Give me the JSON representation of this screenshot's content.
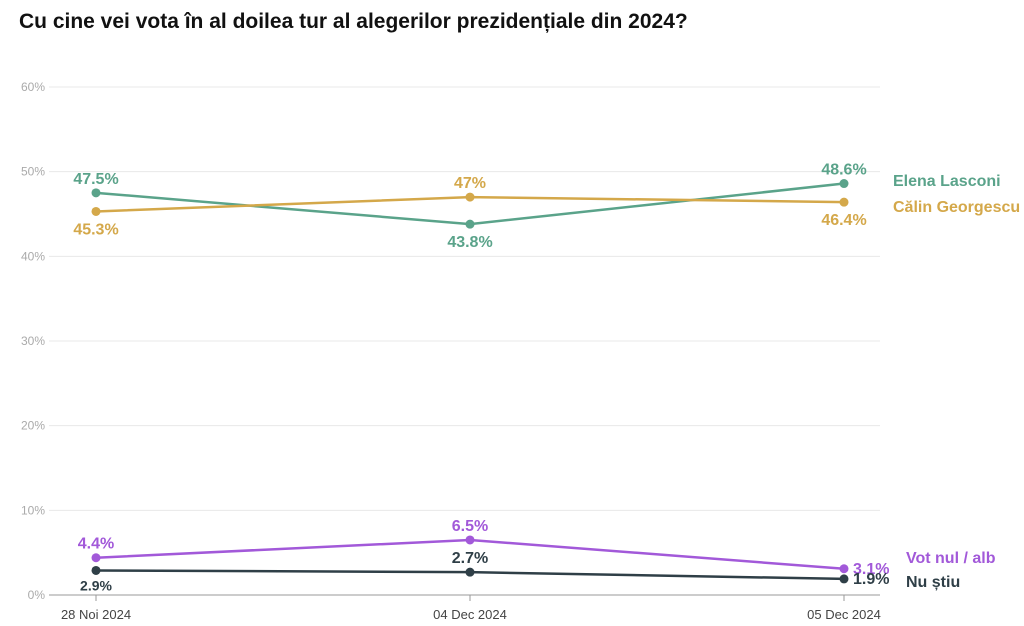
{
  "chart_data": {
    "type": "line",
    "title": "Cu cine vei vota în al doilea tur al alegerilor prezidențiale din 2024?",
    "categories": [
      "28 Noi 2024",
      "04 Dec 2024",
      "05 Dec 2024"
    ],
    "ylim": [
      0,
      60
    ],
    "yticks": [
      "0%",
      "10%",
      "20%",
      "30%",
      "40%",
      "50%",
      "60%"
    ],
    "grid": true,
    "series": [
      {
        "name": "Elena Lasconi",
        "values": [
          47.5,
          43.8,
          48.6
        ],
        "labels": [
          "47.5%",
          "43.8%",
          "48.6%"
        ],
        "color": "#5aa38a"
      },
      {
        "name": "Călin Georgescu",
        "values": [
          45.3,
          47,
          46.4
        ],
        "labels": [
          "45.3%",
          "47%",
          "46.4%"
        ],
        "color": "#d4a84a"
      },
      {
        "name": "Vot nul / alb",
        "values": [
          4.4,
          6.5,
          3.1
        ],
        "labels": [
          "4.4%",
          "6.5%",
          "3.1%"
        ],
        "color": "#a259d9"
      },
      {
        "name": "Nu știu",
        "values": [
          2.9,
          2.7,
          1.9
        ],
        "labels": [
          "2.9%",
          "2.7%",
          "1.9%"
        ],
        "color": "#2f3f47"
      }
    ]
  }
}
